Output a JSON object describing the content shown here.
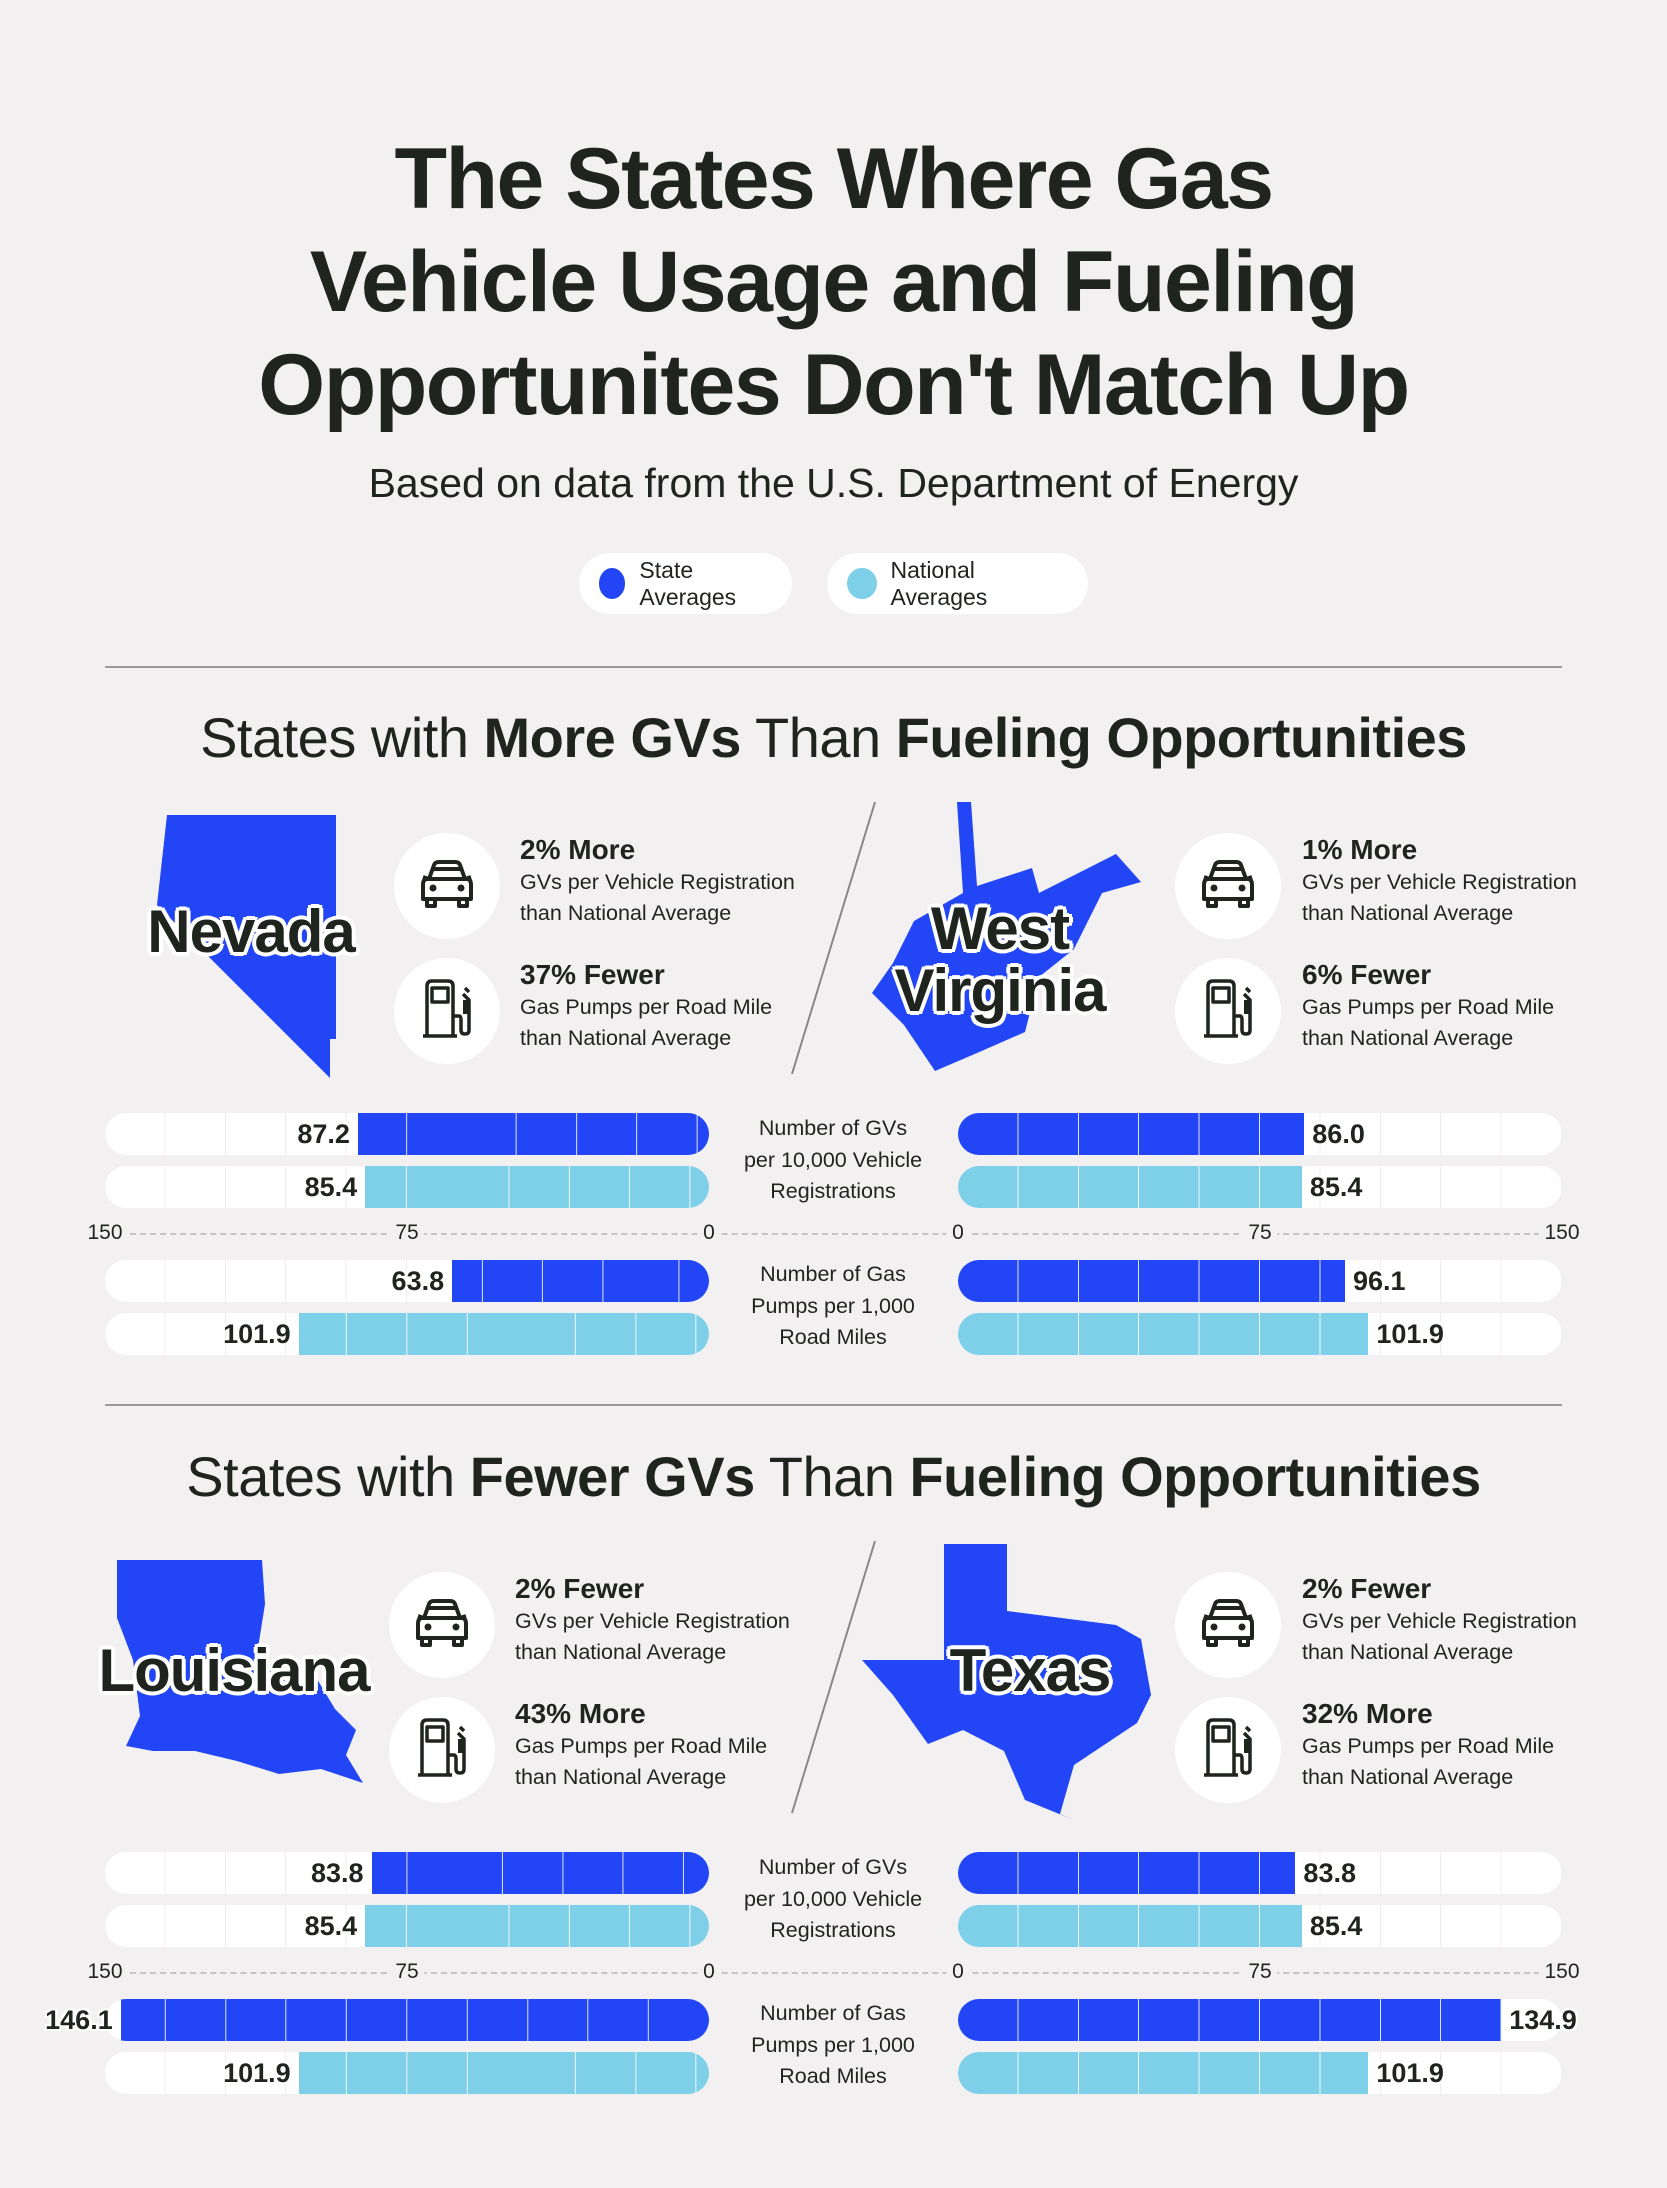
{
  "header": {
    "title_lines": [
      "The States Where Gas",
      "Vehicle Usage and Fueling",
      "Opportunites Don't Match Up"
    ],
    "subtitle": "Based on data from the U.S. Department of Energy"
  },
  "legend": [
    {
      "label": "State Averages",
      "color": "#2245F5"
    },
    {
      "label": "National Averages",
      "color": "#7ECFE8"
    }
  ],
  "sections": [
    {
      "heading_parts": [
        "States with ",
        "More GVs",
        " Than ",
        "Fueling Opportunities"
      ],
      "states": [
        {
          "name_lines": [
            "Nevada"
          ],
          "stats": [
            {
              "icon": "car-icon",
              "headline": "2% More",
              "line1": "GVs per Vehicle Registration",
              "line2": "than National Average"
            },
            {
              "icon": "gas-pump-icon",
              "headline": "37% Fewer",
              "line1": "Gas Pumps per Road Mile",
              "line2": "than National Average"
            }
          ]
        },
        {
          "name_lines": [
            "West",
            "Virginia"
          ],
          "stats": [
            {
              "icon": "car-icon",
              "headline": "1% More",
              "line1": "GVs per Vehicle Registration",
              "line2": "than National Average"
            },
            {
              "icon": "gas-pump-icon",
              "headline": "6% Fewer",
              "line1": "Gas Pumps per Road Mile",
              "line2": "than National Average"
            }
          ]
        }
      ]
    },
    {
      "heading_parts": [
        "States with ",
        "Fewer GVs",
        " Than ",
        "Fueling Opportunities"
      ],
      "states": [
        {
          "name_lines": [
            "Louisiana"
          ],
          "stats": [
            {
              "icon": "car-icon",
              "headline": "2% Fewer",
              "line1": "GVs per Vehicle Registration",
              "line2": "than National Average"
            },
            {
              "icon": "gas-pump-icon",
              "headline": "43% More",
              "line1": "Gas Pumps per Road Mile",
              "line2": "than National Average"
            }
          ]
        },
        {
          "name_lines": [
            "Texas"
          ],
          "stats": [
            {
              "icon": "car-icon",
              "headline": "2% Fewer",
              "line1": "GVs per Vehicle Registration",
              "line2": "than National Average"
            },
            {
              "icon": "gas-pump-icon",
              "headline": "32% More",
              "line1": "Gas Pumps per Road Mile",
              "line2": "than National Average"
            }
          ]
        }
      ]
    }
  ],
  "chart_data": [
    {
      "type": "bar",
      "orientation": "horizontal-mirrored",
      "axis_ticks": [
        0,
        75,
        150
      ],
      "xlim": [
        0,
        150
      ],
      "metric_labels": [
        [
          "Number of GVs",
          "per 10,000 Vehicle",
          "Registrations"
        ],
        [
          "Number of Gas",
          "Pumps per 1,000",
          "Road Miles"
        ]
      ],
      "states": [
        {
          "state": "Nevada",
          "side": "left",
          "gvs": {
            "state": 87.2,
            "national": 85.4
          },
          "pumps": {
            "state": 63.8,
            "national": 101.9
          }
        },
        {
          "state": "West Virginia",
          "side": "right",
          "gvs": {
            "state": 86.0,
            "national": 85.4
          },
          "pumps": {
            "state": 96.1,
            "national": 101.9
          }
        }
      ]
    },
    {
      "type": "bar",
      "orientation": "horizontal-mirrored",
      "axis_ticks": [
        0,
        75,
        150
      ],
      "xlim": [
        0,
        150
      ],
      "metric_labels": [
        [
          "Number of GVs",
          "per 10,000 Vehicle",
          "Registrations"
        ],
        [
          "Number of Gas",
          "Pumps per 1,000",
          "Road Miles"
        ]
      ],
      "states": [
        {
          "state": "Louisiana",
          "side": "left",
          "gvs": {
            "state": 83.8,
            "national": 85.4
          },
          "pumps": {
            "state": 146.1,
            "national": 101.9
          }
        },
        {
          "state": "Texas",
          "side": "right",
          "gvs": {
            "state": 83.8,
            "national": 85.4
          },
          "pumps": {
            "state": 134.9,
            "national": 101.9
          }
        }
      ]
    }
  ],
  "colors": {
    "state": "#2245F5",
    "national": "#7ECFE8",
    "background": "#F2F0F1",
    "text": "#1F241F"
  }
}
